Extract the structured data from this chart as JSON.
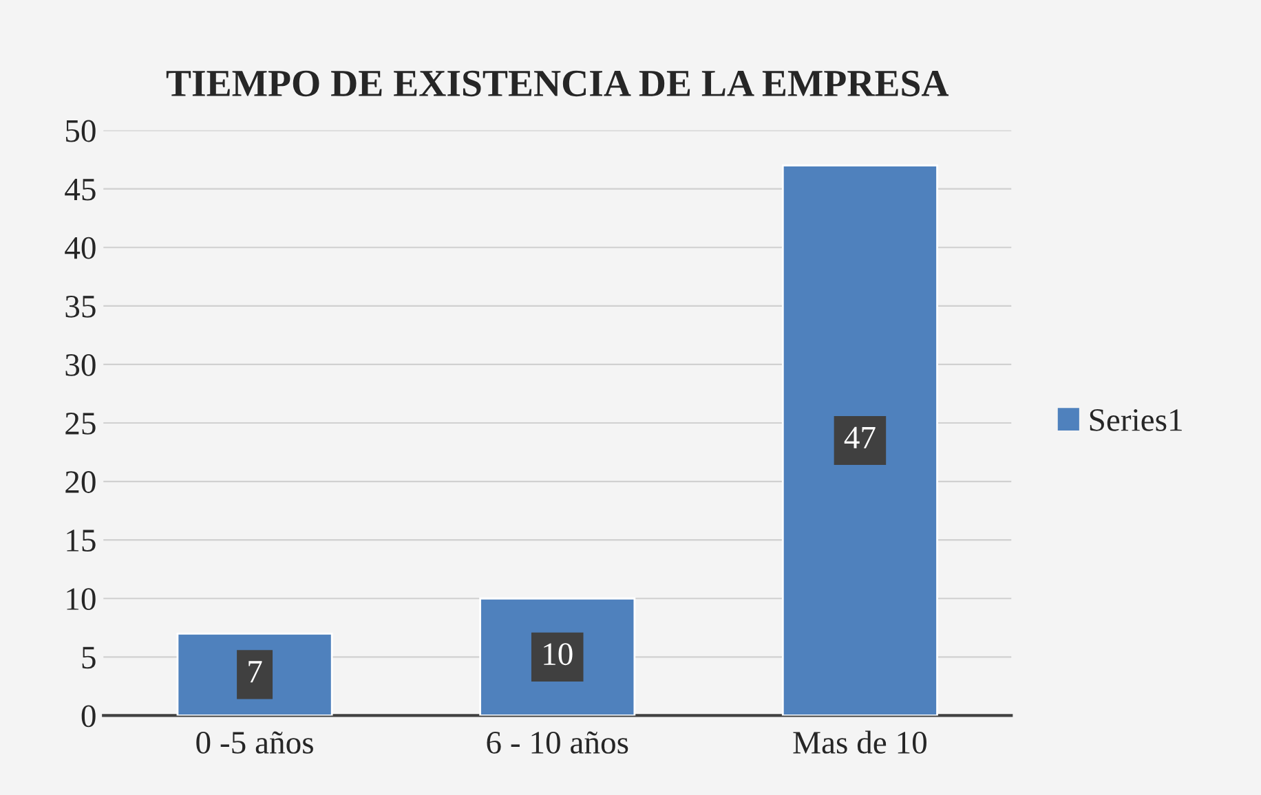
{
  "chart_data": {
    "type": "bar",
    "title": "TIEMPO DE EXISTENCIA DE LA EMPRESA",
    "categories": [
      "0 -5 años",
      "6 - 10 años",
      "Mas de 10"
    ],
    "series": [
      {
        "name": "Series1",
        "color": "#4f81bd",
        "values": [
          7,
          10,
          47
        ]
      }
    ],
    "ylim": [
      0,
      50
    ],
    "yticks": [
      0,
      5,
      10,
      15,
      20,
      25,
      30,
      35,
      40,
      45,
      50
    ],
    "grid": "y",
    "legend": "right",
    "data_labels": true
  }
}
